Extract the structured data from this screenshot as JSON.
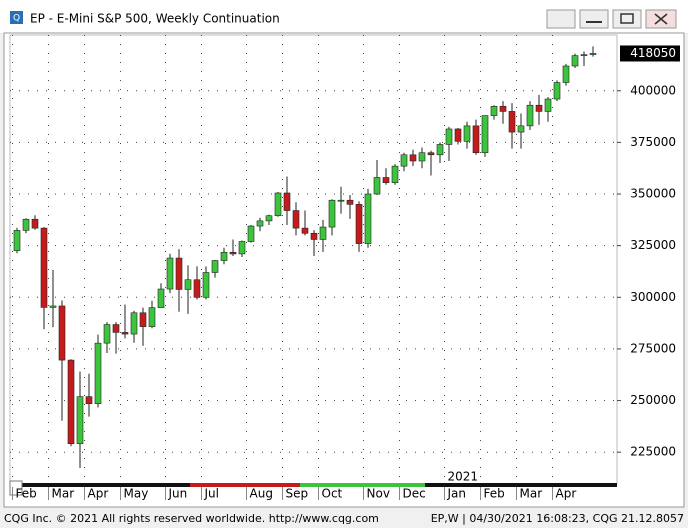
{
  "window": {
    "title": "EP - E-Mini S&P 500, Weekly Continuation",
    "footer_left": "CQG Inc. © 2021 All rights reserved worldwide. http://www.cqg.com",
    "footer_right": "EP,W | 04/30/2021 16:08:23, CQG 21.12.8057"
  },
  "chart_data": {
    "type": "candlestick",
    "year_label": "2021",
    "categories": [
      "Feb",
      null,
      null,
      null,
      "Mar",
      null,
      null,
      null,
      "Apr",
      null,
      null,
      null,
      "May",
      null,
      null,
      null,
      null,
      "Jun",
      null,
      null,
      null,
      "Jul",
      null,
      null,
      null,
      null,
      "Aug",
      null,
      null,
      null,
      "Sep",
      null,
      null,
      null,
      "Oct",
      null,
      null,
      null,
      null,
      "Nov",
      null,
      null,
      null,
      "Dec",
      null,
      null,
      null,
      null,
      "Jan",
      null,
      null,
      null,
      "Feb",
      null,
      null,
      null,
      "Mar",
      null,
      null,
      null,
      "Apr",
      null,
      null,
      null,
      null
    ],
    "open": [
      322600,
      332400,
      337800,
      333500,
      295100,
      295800,
      269600,
      229100,
      251900,
      248500,
      277800,
      286800,
      283000,
      282200,
      292500,
      285800,
      295000,
      304000,
      319000,
      303800,
      308500,
      300000,
      312000,
      317800,
      321800,
      321000,
      327000,
      334500,
      337000,
      339500,
      350500,
      342000,
      333500,
      331000,
      328000,
      334000,
      347000,
      347000,
      345000,
      326000,
      350000,
      358000,
      355500,
      363500,
      369000,
      366000,
      370000,
      369000,
      374000,
      381500,
      375500,
      383000,
      370000,
      388000,
      392500,
      390000,
      380000,
      383000,
      393000,
      390000,
      396000,
      404000,
      412000,
      417000,
      417500
    ],
    "high": [
      333700,
      338300,
      339700,
      334000,
      313300,
      298500,
      270000,
      264000,
      263000,
      281900,
      288000,
      288000,
      296500,
      293500,
      295000,
      298300,
      306800,
      321100,
      323300,
      315500,
      315000,
      315000,
      318000,
      324000,
      328000,
      327500,
      335000,
      338500,
      340000,
      351000,
      358500,
      346000,
      342000,
      332500,
      337500,
      347500,
      353500,
      349500,
      346500,
      352500,
      366500,
      362500,
      364500,
      370000,
      371500,
      372500,
      371000,
      375000,
      382500,
      382000,
      385000,
      386000,
      388000,
      393000,
      395000,
      394000,
      389000,
      395000,
      398000,
      397000,
      405000,
      413000,
      418000,
      419000,
      421500
    ],
    "low": [
      321300,
      331000,
      332700,
      284600,
      285500,
      240200,
      227900,
      217400,
      242200,
      246700,
      273000,
      272700,
      280100,
      278000,
      276500,
      285000,
      295500,
      302000,
      293000,
      292000,
      299000,
      299000,
      309500,
      316000,
      320000,
      319500,
      326500,
      332000,
      335000,
      339000,
      335000,
      330000,
      330000,
      320000,
      322000,
      330000,
      340500,
      338000,
      322000,
      324000,
      349500,
      354500,
      354500,
      361000,
      363500,
      362500,
      359000,
      365000,
      366000,
      374000,
      372000,
      369000,
      368000,
      386000,
      384000,
      372000,
      372000,
      381000,
      383500,
      385000,
      395000,
      402500,
      411000,
      412000,
      416500
    ],
    "close": [
      332400,
      337800,
      333500,
      295100,
      295800,
      269600,
      229100,
      251900,
      248500,
      277800,
      286800,
      283000,
      282200,
      292500,
      285800,
      295000,
      304000,
      319000,
      303800,
      308500,
      300000,
      312000,
      317800,
      321800,
      321000,
      327000,
      334500,
      337000,
      339500,
      350500,
      342000,
      333500,
      331000,
      328000,
      334000,
      347000,
      347000,
      345000,
      326000,
      350000,
      358000,
      355500,
      363500,
      369000,
      366000,
      370000,
      369000,
      374000,
      381500,
      375500,
      383000,
      370000,
      388000,
      392500,
      390000,
      380000,
      383000,
      393000,
      390000,
      396000,
      404000,
      412000,
      417000,
      417500,
      418050
    ],
    "up_color": "#3dc43d",
    "down_color": "#c41c1c",
    "ylim": [
      209600,
      427000
    ],
    "yticks": [
      225000,
      250000,
      275000,
      300000,
      325000,
      350000,
      375000,
      400000
    ],
    "grid": true
  }
}
